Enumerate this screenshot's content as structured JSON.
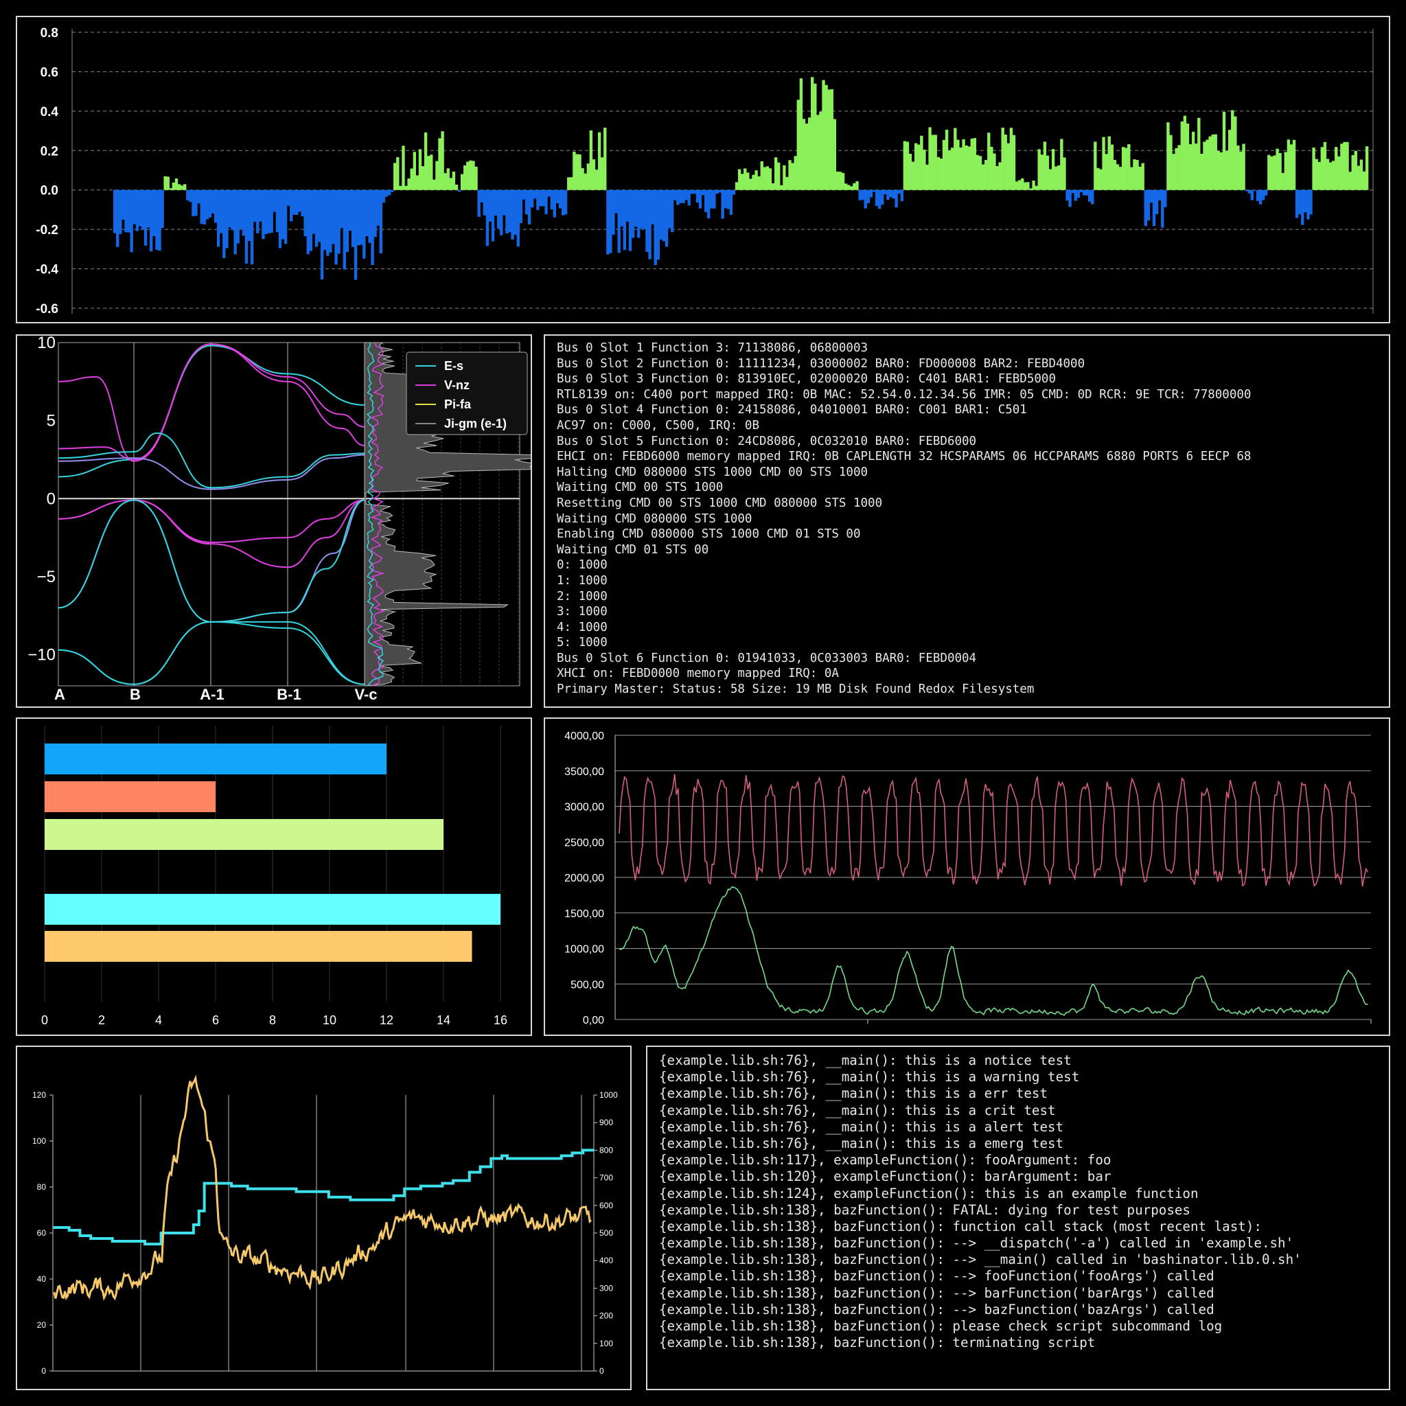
{
  "colors": {
    "background": "#000000",
    "border": "#d8d8d8",
    "positive_bar": "#8cf05a",
    "negative_bar": "#1468e6",
    "cyan": "#33d6e0",
    "magenta": "#e040e0",
    "lavender": "#9090f0",
    "yellow": "#e8e040",
    "gray_fill": "#555555",
    "pink_line": "#d25f7c",
    "green_line": "#74dc8a",
    "turquoise_step": "#3ee0ea",
    "gold_line": "#f6c86c"
  },
  "charts": {
    "top_bars": {
      "type": "bar",
      "ylim": [
        -0.6,
        0.8
      ],
      "yticks": [
        "0.8",
        "0.6",
        "0.4",
        "0.2",
        "0.0",
        "-0.2",
        "-0.4",
        "-0.6"
      ],
      "grid": "dashed horizontal",
      "description_values": "approx. 240 bars alternating between negative (blue) and positive (green) runs; largest positive ~0.73, largest negative ~-0.52"
    },
    "band_structure": {
      "type": "line",
      "ylim": [
        -12,
        10
      ],
      "yticks": [
        "10",
        "5",
        "0",
        "−5",
        "−10"
      ],
      "xticks": [
        "A",
        "B",
        "A-1",
        "B-1",
        "V-c"
      ],
      "legend_position": "top-right",
      "legend": [
        {
          "label": "E-s",
          "color": "#33d6e0"
        },
        {
          "label": "V-nz",
          "color": "#e040e0"
        },
        {
          "label": "Pi-fa",
          "color": "#e8e040"
        },
        {
          "label": "Ji-gm (e-1)",
          "color": "#888888"
        }
      ]
    },
    "hbars": {
      "type": "bar",
      "orientation": "horizontal",
      "xlim": [
        0,
        16
      ],
      "xticks": [
        "0",
        "2",
        "4",
        "6",
        "8",
        "10",
        "12",
        "14",
        "16"
      ],
      "bars": [
        {
          "value": 12,
          "color": "#12a4f8"
        },
        {
          "value": 6,
          "color": "#ff8660"
        },
        {
          "value": 14,
          "color": "#cdf890"
        },
        {
          "value": null,
          "color": null
        },
        {
          "value": 16,
          "color": "#66ffff"
        },
        {
          "value": 15,
          "color": "#ffc86a"
        }
      ]
    },
    "two_lines": {
      "type": "line",
      "ylim": [
        0,
        4000
      ],
      "yticks": [
        "4000,00",
        "3500,00",
        "3000,00",
        "2500,00",
        "2000,00",
        "1500,00",
        "1000,00",
        "500,00",
        "0,00"
      ],
      "series": [
        {
          "color": "#d25f7c",
          "range": [
            1800,
            3700
          ]
        },
        {
          "color": "#74dc8a",
          "range": [
            0,
            1300
          ]
        }
      ]
    },
    "dual_axis": {
      "type": "line",
      "ylim_left": [
        0,
        120
      ],
      "ylim_right": [
        0,
        1000
      ],
      "yticks_left": [
        "120",
        "100",
        "80",
        "60",
        "40",
        "20",
        "0"
      ],
      "yticks_right": [
        "1000",
        "900",
        "800",
        "700",
        "600",
        "500",
        "400",
        "300",
        "200",
        "100",
        "0"
      ],
      "series": [
        {
          "color": "#3ee0ea",
          "axis": "right",
          "kind": "step"
        },
        {
          "color": "#f6c86c",
          "axis": "left",
          "kind": "noisy"
        }
      ]
    }
  },
  "terminal_top": {
    "lines": [
      "Bus 0 Slot 1 Function 3: 71138086, 06800003",
      "Bus 0 Slot 2 Function 0: 11111234, 03000002 BAR0: FD000008 BAR2: FEBD4000",
      "Bus 0 Slot 3 Function 0: 813910EC, 02000020 BAR0: C401 BAR1: FEBD5000",
      "RTL8139 on: C400 port mapped IRQ: 0B MAC: 52.54.0.12.34.56 IMR: 05 CMD: 0D RCR: 9E TCR: 77800000",
      "Bus 0 Slot 4 Function 0: 24158086, 04010001 BAR0: C001 BAR1: C501",
      "AC97 on: C000, C500, IRQ: 0B",
      "Bus 0 Slot 5 Function 0: 24CD8086, 0C032010 BAR0: FEBD6000",
      "EHCI on: FEBD6000 memory mapped IRQ: 0B CAPLENGTH 32 HCSPARAMS 06 HCCPARAMS 6880 PORTS 6 EECP 68",
      "Halting CMD 080000 STS 1000 CMD 00 STS 1000",
      "Waiting CMD 00 STS 1000",
      "Resetting CMD 00 STS 1000 CMD 080000 STS 1000",
      "Waiting CMD 080000 STS 1000",
      "Enabling CMD 080000 STS 1000 CMD 01 STS 00",
      "Waiting CMD 01 STS 00",
      "0: 1000",
      "1: 1000",
      "2: 1000",
      "3: 1000",
      "4: 1000",
      "5: 1000",
      "Bus 0 Slot 6 Function 0: 01941033, 0C033003 BAR0: FEBD0004",
      "XHCI on: FEBD0000 memory mapped IRQ: 0A",
      "Primary Master: Status: 58 Size: 19 MB Disk Found Redox Filesystem"
    ]
  },
  "terminal_bottom": {
    "lines": [
      "{example.lib.sh:76}, __main(): this is a notice test",
      "{example.lib.sh:76}, __main(): this is a warning test",
      "{example.lib.sh:76}, __main(): this is a err test",
      "{example.lib.sh:76}, __main(): this is a crit test",
      "{example.lib.sh:76}, __main(): this is a alert test",
      "{example.lib.sh:76}, __main(): this is a emerg test",
      "{example.lib.sh:117}, exampleFunction(): fooArgument: foo",
      "{example.lib.sh:120}, exampleFunction(): barArgument: bar",
      "{example.lib.sh:124}, exampleFunction(): this is an example function",
      "{example.lib.sh:138}, bazFunction(): FATAL: dying for test purposes",
      "{example.lib.sh:138}, bazFunction(): function call stack (most recent last):",
      "{example.lib.sh:138}, bazFunction(): --> __dispatch('-a') called in 'example.sh'",
      "{example.lib.sh:138}, bazFunction(): --> __main() called in 'bashinator.lib.0.sh'",
      "{example.lib.sh:138}, bazFunction(): --> fooFunction('fooArgs') called",
      "{example.lib.sh:138}, bazFunction(): --> barFunction('barArgs') called",
      "{example.lib.sh:138}, bazFunction(): --> bazFunction('bazArgs') called",
      "{example.lib.sh:138}, bazFunction(): please check script subcommand log",
      "{example.lib.sh:138}, bazFunction(): terminating script"
    ]
  }
}
